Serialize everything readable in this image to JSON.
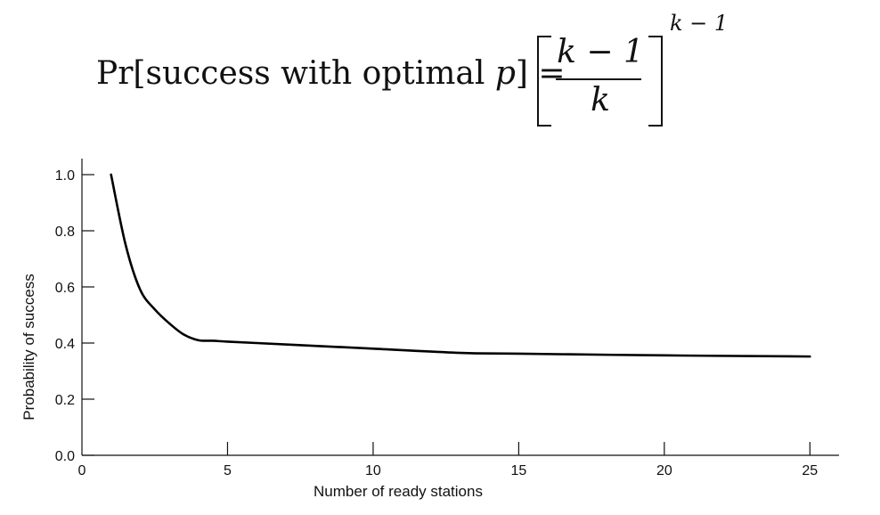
{
  "formula": {
    "lhs_prefix": "Pr[success with optimal ",
    "lhs_var": "p",
    "lhs_suffix": "] =",
    "numerator": "k − 1",
    "denominator": "k",
    "exponent": "k − 1"
  },
  "chart_data": {
    "type": "line",
    "xlabel": "Number of ready stations",
    "ylabel": "Probability of success",
    "xlim": [
      0,
      26
    ],
    "ylim": [
      0,
      1.0
    ],
    "xticks": [
      0,
      5,
      10,
      15,
      20,
      25
    ],
    "yticks": [
      0.0,
      0.2,
      0.4,
      0.6,
      0.8,
      1.0
    ],
    "grid": false,
    "series": [
      {
        "x": [
          1,
          1.5,
          2,
          2.5,
          3,
          3.5,
          4,
          4.5,
          5,
          6,
          8,
          10,
          13,
          15,
          20,
          25
        ],
        "y": [
          1.0,
          0.75,
          0.59,
          0.52,
          0.47,
          0.43,
          0.41,
          0.408,
          0.405,
          0.4,
          0.39,
          0.38,
          0.365,
          0.362,
          0.356,
          0.352
        ]
      }
    ]
  }
}
